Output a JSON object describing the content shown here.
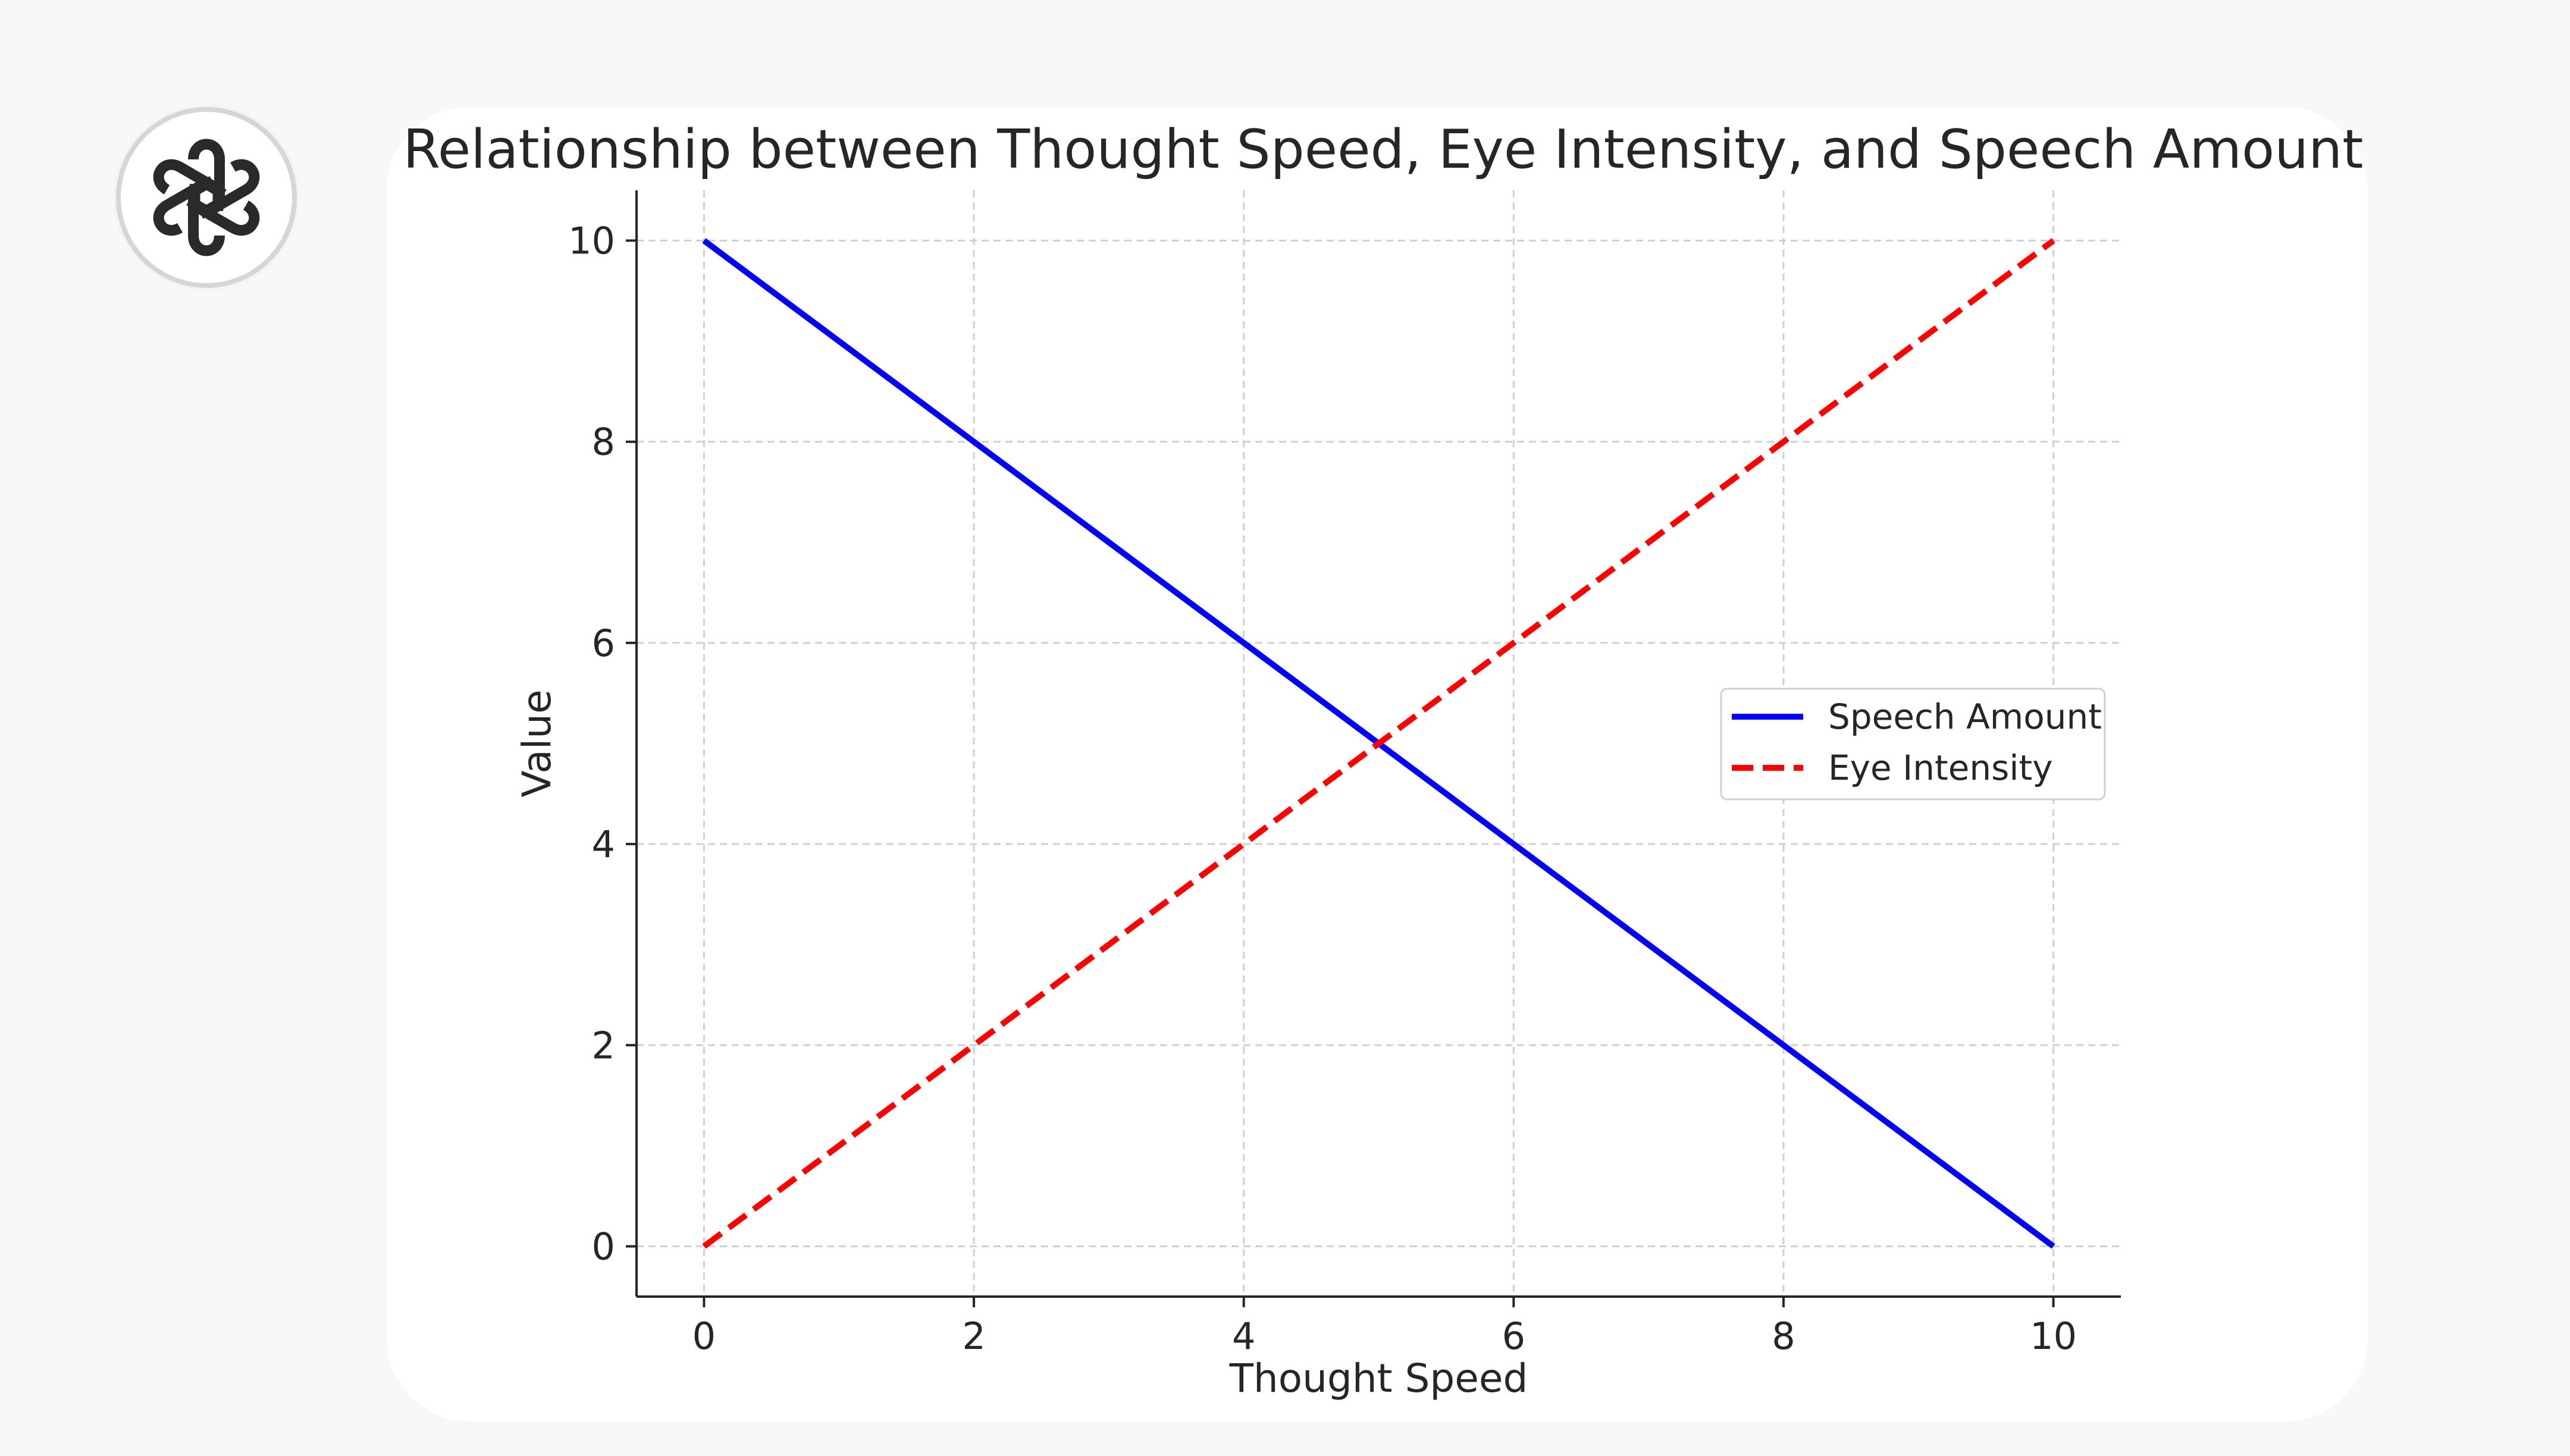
{
  "logo": {
    "icon": "openai-knot-logo"
  },
  "chart_data": {
    "type": "line",
    "title": "Relationship between Thought Speed, Eye Intensity, and Speech Amount",
    "xlabel": "Thought Speed",
    "ylabel": "Value",
    "xlim": [
      -0.5,
      10.5
    ],
    "ylim": [
      -0.5,
      10.5
    ],
    "xticks": [
      0,
      2,
      4,
      6,
      8,
      10
    ],
    "yticks": [
      0,
      2,
      4,
      6,
      8,
      10
    ],
    "grid": true,
    "legend_position": "center-right",
    "series": [
      {
        "name": "Speech Amount",
        "color": "#0000ff",
        "style": "solid",
        "x": [
          0,
          1,
          2,
          3,
          4,
          5,
          6,
          7,
          8,
          9,
          10
        ],
        "y": [
          10,
          9,
          8,
          7,
          6,
          5,
          4,
          3,
          2,
          1,
          0
        ]
      },
      {
        "name": "Eye Intensity",
        "color": "#ff0000",
        "style": "dashed",
        "x": [
          0,
          1,
          2,
          3,
          4,
          5,
          6,
          7,
          8,
          9,
          10
        ],
        "y": [
          0,
          1,
          2,
          3,
          4,
          5,
          6,
          7,
          8,
          9,
          10
        ]
      }
    ]
  }
}
